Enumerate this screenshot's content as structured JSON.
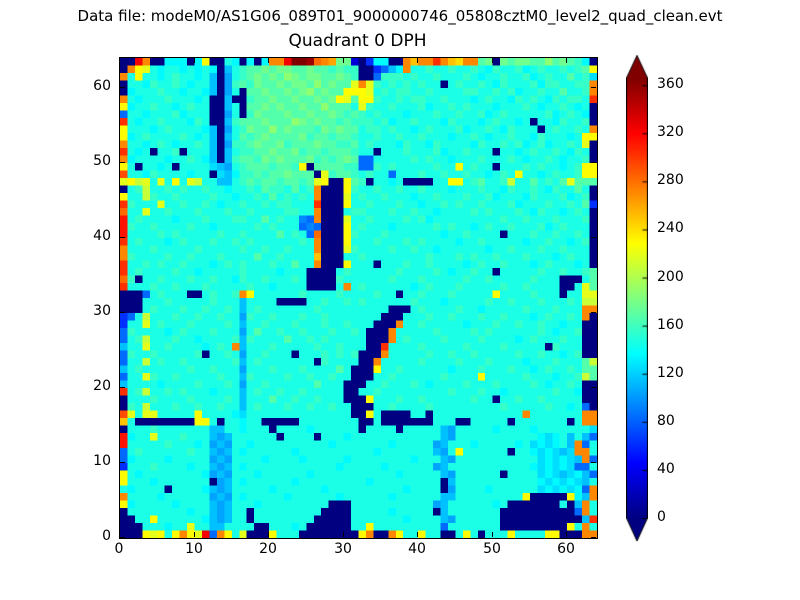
{
  "header": {
    "data_file_label": "Data file: modeM0/AS1G06_089T01_9000000746_05808cztM0_level2_quad_clean.evt"
  },
  "chart_data": {
    "type": "heatmap",
    "title": "Quadrant 0 DPH",
    "x_label": "",
    "y_label": "",
    "x_range": [
      0,
      64
    ],
    "y_range": [
      0,
      64
    ],
    "x_ticks": [
      0,
      10,
      20,
      30,
      40,
      50,
      60
    ],
    "y_ticks": [
      0,
      10,
      20,
      30,
      40,
      50,
      60
    ],
    "grid": "off",
    "colormap": "jet",
    "value_min": 0,
    "value_max": 366,
    "cell_value_step": 10.457,
    "grid_size": [
      64,
      64
    ],
    "colorbar": {
      "ticks": [
        0,
        40,
        80,
        120,
        160,
        200,
        240,
        280,
        320,
        360
      ],
      "extend": "both",
      "arrow_low_color": "#000080",
      "arrow_high_color": "#800000"
    },
    "frame_color": "#000000",
    "background_color": "#ffffff",
    "rows_top_to_bottom": [
      "00vq00ddd0dm00ed0d0dqqvzzyrqphh306dd00qoqqtqonqqgh0hghhggighgfd0",
      "0qmledeededed0befgghghhgghggfgff0068bdqeefeefeefedfeefdefeefefgm",
      "qemeedefeedeb0aefghghgihghhgghgf008fffefeefeeefedeefeefdefeegefc",
      "0eedfeefedeeb0afgfhgghghhgighgglqlfefefefee0efeefedfeeefdffeeffq",
      "0deeefeedeedb0ae0gghgghghighggmmmlefeffeefeeeeffeefefdeefeegeefq",
      "qedeeefeeede00b00fgghgghgghghmlgmmfeefeffeefeeedefeedfefedfeffet",
      "mdeefeedefee00be0gghghgghggigggнlfeefeeefdeefefeeedeeefedeefede0",
      "8eedeeefdeee00ae0fhggghgghgghgfgfefeeedeeefeefeefdefeeeeefdefed0",
      "tedeefeeedfe00bfggghgggihghggfgfffefdeefeeedfeeedefeede0eedfeef0",
      "meeedefeeeedb0aefhggighgggfhghggeffefeedefeeefdeefedfeee0efeefeq",
      "mdefeeeefedeb0begfghgggghfggfggfeefeefeefeeedeefedeefeedfeeedemm",
      "qeedefedeefeb0affghgghfggghggffgefeeedfeedfeeeedfeefefdefdeefel0",
      "tede0eef0eeeb0beffgghgghfggfgggfee0eeefeeefdeefeee0eedefeefedfe0",
      "qdeeeedeefedb0bfggfhghggghfgfghg88eeeeefefeedeeefeeefedeefedeef0",
      "me0eede0eeeecbaefgggfggfm0ggggff88fefeeeeefeemefee0eeefefeedefmm",
      "seedfeeeedee0cbdffgfgghggg0lfggfefee8eeefeefeefeedefemeedefeefmm",
      "lmklelemelkeebbefgfggfggfglm00mgf0eede0000eemmefgeefkeegefeglggg",
      "0efkeefefeefeedeefegffegefq000mfeefeefeefeeedeeefeedfeefedfeege0",
      "meekfeefeeeefeedeefegefefeq000lefeefeeedeefeeefeefdeeedfeeefdef0",
      "tfeeeleefeefedeefeefeffeeet000meefeeefeedeefefeefeeefdeeefeefeg6",
      "reeleefeeefeeefeefeeeeffeeq000effeeefeefeedeeeefefeeefedfeedefe0",
      "uefeeeedeeefeeeffeegefee98q000leefeeeefefdeeeeeeeeefeefeeefeeef0",
      "ufeefeeeefeedeeeeefefeee898000mefeeedeeeeefefeedefeefeeefdefeee0",
      "ueeeefefeeeeefeefeeeegefe8r000mfeeefeeeeeeedeefeeee0eeefeefeefe0",
      "tefeeedefeeefeefefeeeeeefeq000meeefeeefefeeeedeefeeeeedeefeedef0",
      "qeeefeeeeefeeeeefeefeefeeeq000lfeeeefeefeedeeeeeedeefeeefeefeee0",
      "qfeeeefeefeeefeeeegeefeeeeo000eefeeeeeeeefeeefefeefeeefeeedefee0",
      "teefefeefeeedefefeeefeegeeq000meee0eeefeefeeeedefeefeeedefeeede0",
      "tefeeeefeedeeeeefeeeedeee0000efeeeeeefeeeefedeefee0eeeeefeefeefg",
      "rf0eefeeefeefeedfeefeeefe0000feeeeeefeeefeeeeefeefeeeeefeee000eg",
      "teeefeefeeefeeeeefeedeeee0000eqefeeeeeedefeeefeeeeefeefeeee00elg",
      "0008efeee00efeefqmeeeeeefeeeefeeeefee0eefeeefeeeeemeeeefeee0eell",
      "000eeefeeeeefeeebeeee0000eefeefefeeeeeefeeedeeeeefeefeeefeeefekk",
      "000efeeefeefeefebefeeeeeeefeeeeeeeee000efeeeefeedeeeeefeeefeeeqq",
      "68ekeeefeefeefeeafeefeeefeefeeeeeee000eeefeefeeefeefeeedefeefeq0",
      "6eelefeeefeeeefebeefeeefeeefeefeee000qeefeeeeedeeefeefeefeedee00",
      "8feeeedefeeefeeeaegeefeefeeefeefe000qeeeeefeeeefefeeeeeefedeef00",
      "8efkeeefeedeeeefbfeeeegeefefeeeee000qefeeeefeeeefeeeedefeeefee00",
      "beeleefeeeedefeqbeeefeeeeefeefeee00teeeefeeeeefeeeefeeeee0feee00",
      "8feefeeeeef0eefeaeefeee0eeefefef000qeeeeefeefeefeeeeefeefeedef00",
      "8eekefeefeeeeeefbefeeeeeee0feeee00qeeeeefeeeefeeefeeeedeeefeeegk",
      "befeeeeeefeefeeeaeeefeeefeeeege000meefeeeeeedeeefeeefeedefeefegg",
      "8eelfeefeeeeefeebfeeeefeefeefee000eefeeeeeefeeeemeeeeefeeedeefkg",
      "beeeedeeeefeeefeaeefeeeeeegeee000eefeeefedeeeefeeefeeeefedeefe00",
      "tefkeefefeeedeeebefeefeefeeeee00eefeeeeeeeeefeeefeedeeeeeefeed00",
      "0eeefeeeefeeeefebeeegeefeefeee000meeefeefeeeeeefee0eefeefeeeee00",
      "0fekeeefeefeefeebefeeefeefeefee000eefeeeefeeeeeeeeefeeeeefeede80",
      "slelleeeeemeeeedceeeeeeeeeeeeee00me0000ee0eeeeeeeeeeeeqeeeeeeeqq",
      "oe00000000mme0eedee00000eeeeeeee00e0000000eee00eeeee0eeeeeee0eqq",
      "0eeefeeeeeeebbeedeee0eeeedeeeeee0eeee0eeeeebaeeeeedeeeedeeeeeeec",
      "udeeleeefeeebabeeeeee0eeee0eeedeeeeeeeeeeeebaeeeeeeeeeeedcdebeb8",
      "ueeeeefeeedeabaeedeeeeeeeeeedeeeeeeedeeeeeabeeedeeeeedecdcdebq8",
      "8efeeeeeefeebabedeeeeeedeeeeeeeeeedeeeeeeebaemeeeeee0eedcdcbcqq",
      "8deeeedeeeeeabaeeeedeeeedeeeeedeeeeeeeedeeebaeeeeeeeeeeecdcdcbq8",
      "6eeefeeeedeebabedeeeeeeeeeeeedeeeeedeeeeeeabeeeeeeeeeeedcdcdc88",
      "medeeeeeeeedabaeeedeeeeeedeeeeeeeeeeedeeeeebaeeeeee0eeeecdcbcdb8",
      "meeedeeeeeee0abedeeeeeedeeeeeeeeedeeeeeeeee0beeeeeeeeeeedcdcdcbe",
      "edeeee0eeeedbabeeeeedeeeeeedeeeeeeeeeedeeee0aeeeedeeeeeecdcdcd8q",
      "qeeeedeeeeeeabaedeeeeedeeeeeedeeeeeedeeeeeebbeeeeeeeeem00000mdbq",
      "mdeeeeedeeeebabeeedeeeeeeeee000eeeeeeeeeeeabeeeeeede0000000e0bq",
      "0eeeeeeeedeebabee0eeeeeeeee0000eeeeedeeeee0beeeeeee00000000008q",
      "00eemeeeeeedbabee0eeeeeeee00000eeeeeeedeeeebaeeeeee00000000000bt",
      "000eeedeeleebbeeee00eeede000000eemeeeeeeeee8eeeeeee000000000meq",
      "000mlmemqmlv8qmel000meee00000000mq00qmeemee00eme0eeemeeeemm000qq"
    ]
  }
}
